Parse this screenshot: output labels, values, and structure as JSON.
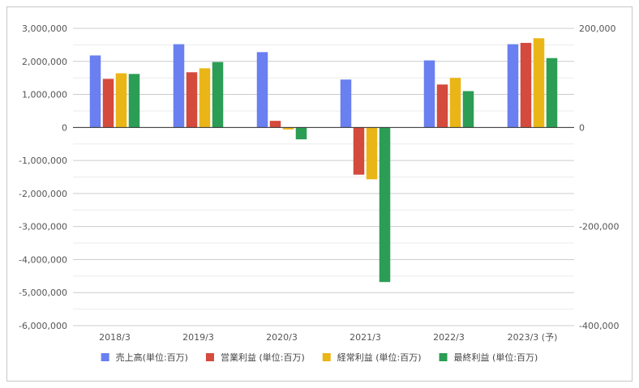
{
  "chart_data": {
    "type": "bar",
    "categories": [
      "2018/3",
      "2019/3",
      "2020/3",
      "2021/3",
      "2022/3",
      "2023/3 (予)"
    ],
    "series": [
      {
        "name": "売上高(単位:百万)",
        "color": "#6a7ff0",
        "values": [
          2180000,
          2520000,
          2280000,
          1450000,
          2030000,
          2520000
        ]
      },
      {
        "name": "営業利益 (単位:百万)",
        "color": "#d44a3c",
        "values": [
          1470000,
          1670000,
          200000,
          -1430000,
          1300000,
          2560000
        ]
      },
      {
        "name": "経常利益 (単位:百万)",
        "color": "#eab516",
        "values": [
          1640000,
          1790000,
          -60000,
          -1570000,
          1500000,
          2700000
        ]
      },
      {
        "name": "最終利益 (単位:百万)",
        "color": "#2c9d55",
        "values": [
          1620000,
          1980000,
          -360000,
          -4680000,
          1100000,
          2100000
        ]
      }
    ],
    "left_axis": {
      "ylim": [
        -6000000,
        3000000
      ],
      "ticks": [
        3000000,
        2000000,
        1000000,
        0,
        -1000000,
        -2000000,
        -3000000,
        -4000000,
        -5000000,
        -6000000
      ],
      "tick_labels": [
        "3,000,000",
        "2,000,000",
        "1,000,000",
        "0",
        "-1,000,000",
        "-2,000,000",
        "-3,000,000",
        "-4,000,000",
        "-5,000,000",
        "-6,000,000"
      ]
    },
    "right_axis": {
      "ylim": [
        -400000,
        200000
      ],
      "ticks": [
        200000,
        0,
        -200000,
        -400000
      ],
      "tick_labels": [
        "200,000",
        "0",
        "-200,000",
        "-400,000"
      ]
    },
    "grid": true,
    "legend_position": "bottom",
    "title": "",
    "xlabel": "",
    "ylabel": ""
  }
}
